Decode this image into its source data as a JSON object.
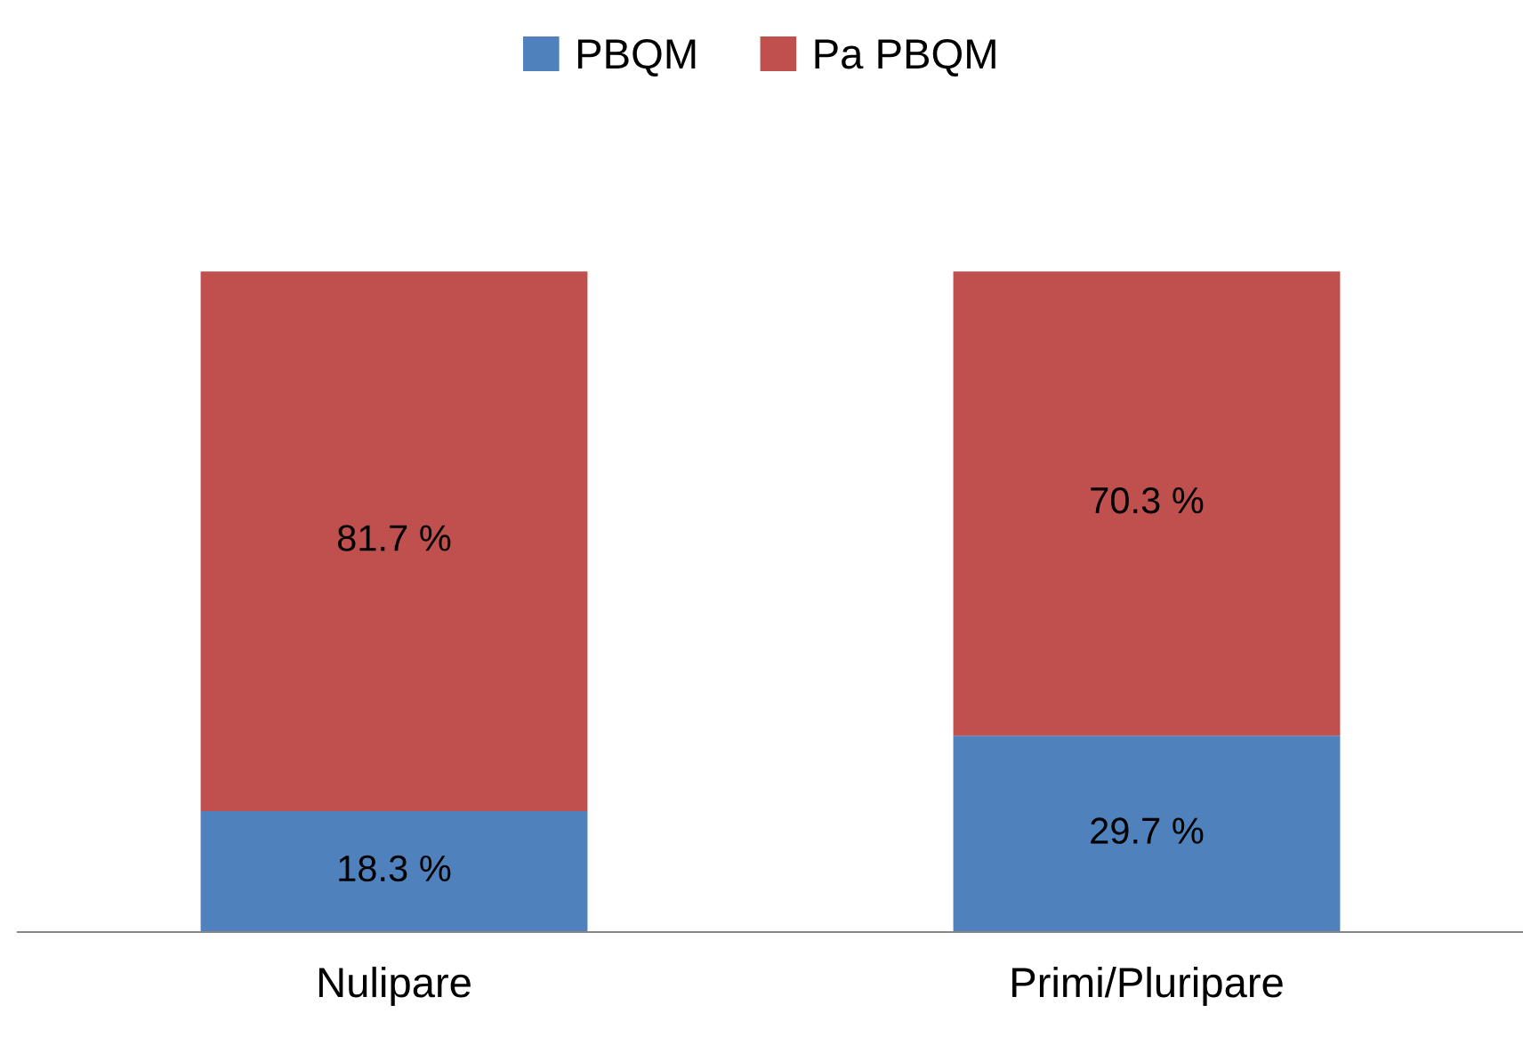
{
  "chart_data": {
    "type": "bar",
    "stacked": true,
    "categories": [
      "Nulipare",
      "Primi/Pluripare"
    ],
    "series": [
      {
        "name": "PBQM",
        "color": "#4f81bd",
        "values": [
          18.3,
          29.7
        ],
        "value_labels": [
          "18.3 %",
          "29.7 %"
        ]
      },
      {
        "name": "Pa PBQM",
        "color": "#c0504d",
        "values": [
          81.7,
          70.3
        ],
        "value_labels": [
          "81.7 %",
          "70.3 %"
        ]
      }
    ],
    "legend": "top",
    "grid": false,
    "tick_labels": "x"
  }
}
